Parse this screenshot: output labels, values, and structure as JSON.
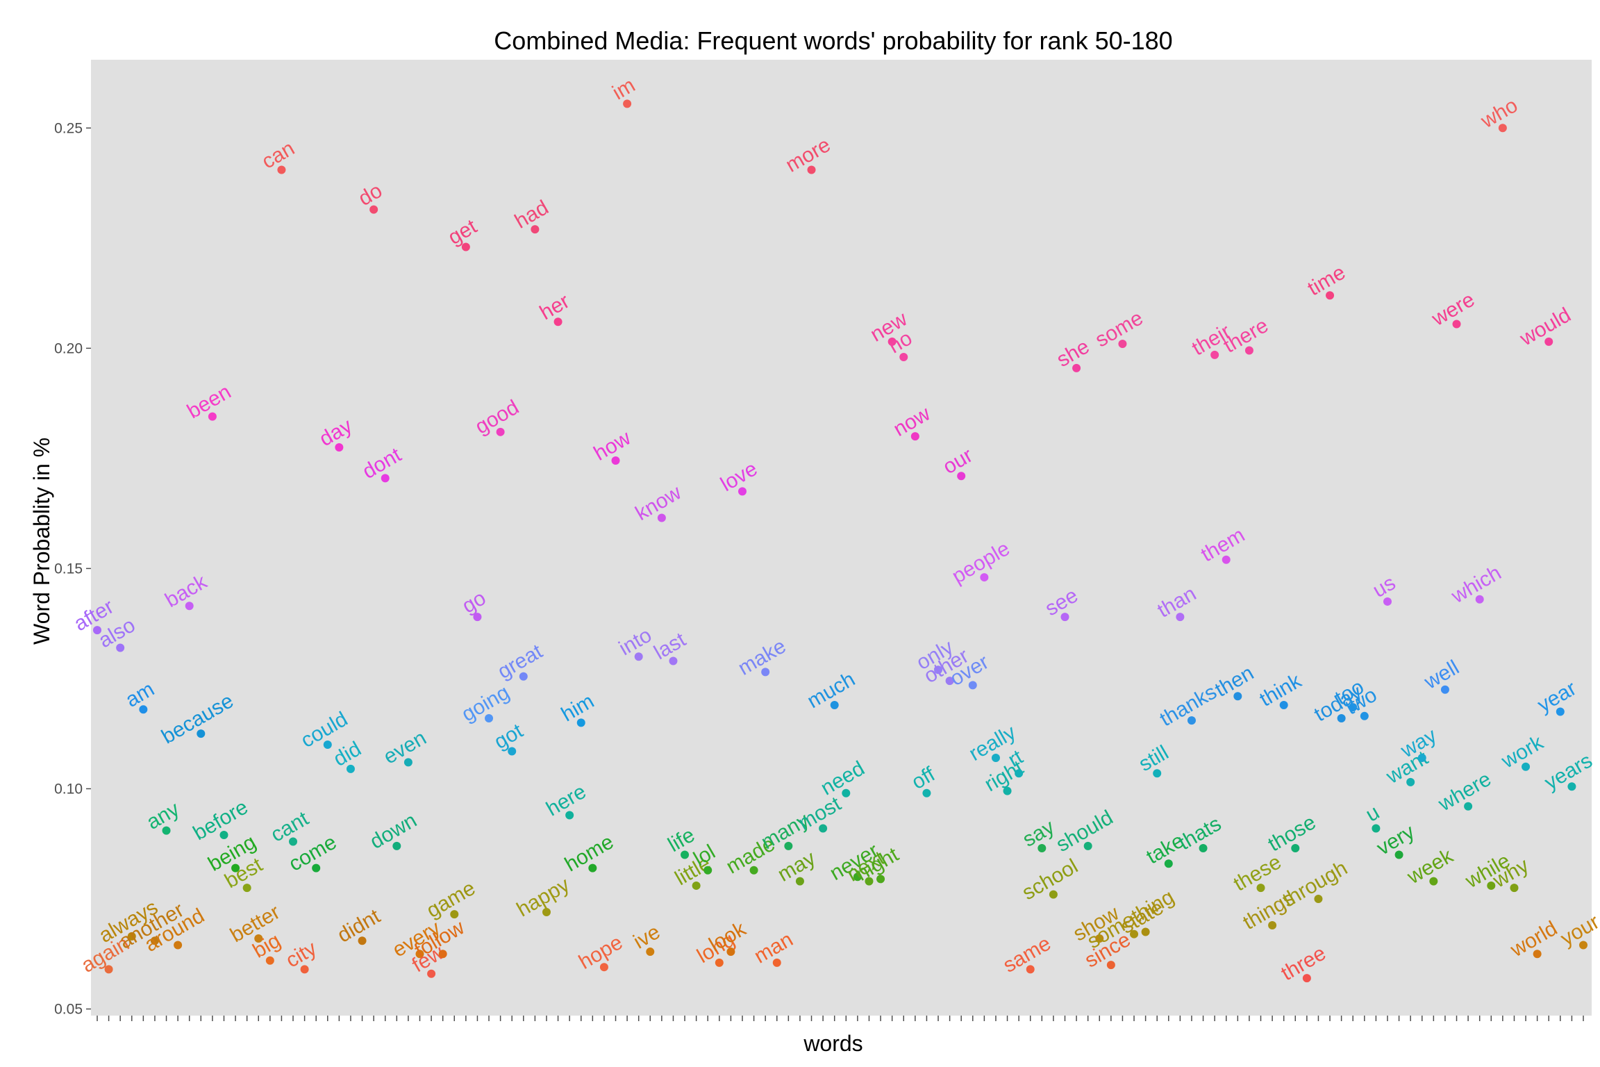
{
  "chart_data": {
    "type": "scatter",
    "title": "Combined Media: Frequent words' probability for rank 50-180",
    "xlabel": "words",
    "ylabel": "Word Probablity in %",
    "ylim": [
      0.0485,
      0.2655
    ],
    "y_ticks": [
      "0.05",
      "0.10",
      "0.15",
      "0.20",
      "0.25"
    ],
    "grid": false,
    "legend": "none",
    "panel_color": "#e0e0e0",
    "points": [
      {
        "word": "after",
        "y": 0.136,
        "color": "#a869f8"
      },
      {
        "word": "again",
        "y": 0.059,
        "color": "#e96c3d"
      },
      {
        "word": "also",
        "y": 0.132,
        "color": "#9e73f8"
      },
      {
        "word": "always",
        "y": 0.0665,
        "color": "#b8860b"
      },
      {
        "word": "am",
        "y": 0.118,
        "color": "#1f8fe8"
      },
      {
        "word": "another",
        "y": 0.0655,
        "color": "#c07a12"
      },
      {
        "word": "any",
        "y": 0.0905,
        "color": "#14b471"
      },
      {
        "word": "around",
        "y": 0.0645,
        "color": "#d07a10"
      },
      {
        "word": "back",
        "y": 0.1415,
        "color": "#c65ff4"
      },
      {
        "word": "because",
        "y": 0.1125,
        "color": "#1592d6"
      },
      {
        "word": "been",
        "y": 0.1845,
        "color": "#f53cc8"
      },
      {
        "word": "before",
        "y": 0.0895,
        "color": "#10b085"
      },
      {
        "word": "being",
        "y": 0.082,
        "color": "#22aa22"
      },
      {
        "word": "best",
        "y": 0.0775,
        "color": "#8aa416"
      },
      {
        "word": "better",
        "y": 0.066,
        "color": "#c98012"
      },
      {
        "word": "big",
        "y": 0.061,
        "color": "#ea6d22"
      },
      {
        "word": "can",
        "y": 0.2405,
        "color": "#f25a5a"
      },
      {
        "word": "cant",
        "y": 0.088,
        "color": "#16b08a"
      },
      {
        "word": "city",
        "y": 0.059,
        "color": "#f0613c"
      },
      {
        "word": "come",
        "y": 0.082,
        "color": "#18aa3a"
      },
      {
        "word": "could",
        "y": 0.11,
        "color": "#19a7d0"
      },
      {
        "word": "day",
        "y": 0.1775,
        "color": "#f136d0"
      },
      {
        "word": "did",
        "y": 0.1045,
        "color": "#16b0c4"
      },
      {
        "word": "didnt",
        "y": 0.0655,
        "color": "#c27710"
      },
      {
        "word": "do",
        "y": 0.2315,
        "color": "#f24b70"
      },
      {
        "word": "dont",
        "y": 0.1705,
        "color": "#e73ae2"
      },
      {
        "word": "down",
        "y": 0.087,
        "color": "#13ad7c"
      },
      {
        "word": "even",
        "y": 0.106,
        "color": "#16acb6"
      },
      {
        "word": "every",
        "y": 0.0625,
        "color": "#d8780e"
      },
      {
        "word": "few",
        "y": 0.058,
        "color": "#f15a48"
      },
      {
        "word": "follow",
        "y": 0.0625,
        "color": "#df6c16"
      },
      {
        "word": "game",
        "y": 0.0715,
        "color": "#9d9712"
      },
      {
        "word": "get",
        "y": 0.223,
        "color": "#f2427c"
      },
      {
        "word": "go",
        "y": 0.139,
        "color": "#c15cf2"
      },
      {
        "word": "going",
        "y": 0.116,
        "color": "#5296f5"
      },
      {
        "word": "good",
        "y": 0.181,
        "color": "#ef3ec0"
      },
      {
        "word": "got",
        "y": 0.1085,
        "color": "#1aa5d2"
      },
      {
        "word": "great",
        "y": 0.1255,
        "color": "#7388f7"
      },
      {
        "word": "had",
        "y": 0.227,
        "color": "#f04878"
      },
      {
        "word": "happy",
        "y": 0.072,
        "color": "#9f9a14"
      },
      {
        "word": "her",
        "y": 0.206,
        "color": "#f63e8d"
      },
      {
        "word": "here",
        "y": 0.094,
        "color": "#11b19c"
      },
      {
        "word": "him",
        "y": 0.115,
        "color": "#1599e0"
      },
      {
        "word": "home",
        "y": 0.082,
        "color": "#22a829"
      },
      {
        "word": "hope",
        "y": 0.0595,
        "color": "#f16440"
      },
      {
        "word": "how",
        "y": 0.1745,
        "color": "#eb39d8"
      },
      {
        "word": "im",
        "y": 0.2555,
        "color": "#f15f55"
      },
      {
        "word": "into",
        "y": 0.13,
        "color": "#9f79f4"
      },
      {
        "word": "ive",
        "y": 0.063,
        "color": "#cf7f0f"
      },
      {
        "word": "know",
        "y": 0.1615,
        "color": "#cf55ec"
      },
      {
        "word": "last",
        "y": 0.129,
        "color": "#a177f5"
      },
      {
        "word": "life",
        "y": 0.085,
        "color": "#16b15f"
      },
      {
        "word": "little",
        "y": 0.078,
        "color": "#80a214"
      },
      {
        "word": "lol",
        "y": 0.0815,
        "color": "#33ab26"
      },
      {
        "word": "long",
        "y": 0.0605,
        "color": "#ee6826"
      },
      {
        "word": "look",
        "y": 0.063,
        "color": "#d5730f"
      },
      {
        "word": "love",
        "y": 0.1675,
        "color": "#e33fe4"
      },
      {
        "word": "made",
        "y": 0.0815,
        "color": "#45aa20"
      },
      {
        "word": "make",
        "y": 0.1265,
        "color": "#7a86f6"
      },
      {
        "word": "man",
        "y": 0.0605,
        "color": "#f1642e"
      },
      {
        "word": "many",
        "y": 0.087,
        "color": "#1dae5e"
      },
      {
        "word": "may",
        "y": 0.079,
        "color": "#6ba218"
      },
      {
        "word": "more",
        "y": 0.2405,
        "color": "#f24d6d"
      },
      {
        "word": "most",
        "y": 0.091,
        "color": "#14af8e"
      },
      {
        "word": "much",
        "y": 0.119,
        "color": "#1e93e0"
      },
      {
        "word": "need",
        "y": 0.099,
        "color": "#10b2a2"
      },
      {
        "word": "never",
        "y": 0.08,
        "color": "#3ca922"
      },
      {
        "word": "next",
        "y": 0.079,
        "color": "#5ea61a"
      },
      {
        "word": "night",
        "y": 0.0795,
        "color": "#4ea81c"
      },
      {
        "word": "new",
        "y": 0.2015,
        "color": "#f4409c"
      },
      {
        "word": "no",
        "y": 0.198,
        "color": "#f344a2"
      },
      {
        "word": "now",
        "y": 0.18,
        "color": "#ef38c4"
      },
      {
        "word": "off",
        "y": 0.099,
        "color": "#12b2ae"
      },
      {
        "word": "only",
        "y": 0.127,
        "color": "#9580f6"
      },
      {
        "word": "other",
        "y": 0.1245,
        "color": "#9a7bf4"
      },
      {
        "word": "our",
        "y": 0.171,
        "color": "#e83ad4"
      },
      {
        "word": "over",
        "y": 0.1235,
        "color": "#6e8cf6"
      },
      {
        "word": "people",
        "y": 0.148,
        "color": "#d25cf4"
      },
      {
        "word": "really",
        "y": 0.107,
        "color": "#19adc6"
      },
      {
        "word": "right",
        "y": 0.0995,
        "color": "#13b1a6"
      },
      {
        "word": "rt",
        "y": 0.1035,
        "color": "#14b0b8"
      },
      {
        "word": "same",
        "y": 0.059,
        "color": "#f2603f"
      },
      {
        "word": "say",
        "y": 0.0865,
        "color": "#22ad52"
      },
      {
        "word": "school",
        "y": 0.076,
        "color": "#8e9d14"
      },
      {
        "word": "see",
        "y": 0.139,
        "color": "#b567f6"
      },
      {
        "word": "she",
        "y": 0.1955,
        "color": "#f23fa0"
      },
      {
        "word": "should",
        "y": 0.087,
        "color": "#16b07a"
      },
      {
        "word": "show",
        "y": 0.066,
        "color": "#b88a10"
      },
      {
        "word": "since",
        "y": 0.06,
        "color": "#ec6232"
      },
      {
        "word": "some",
        "y": 0.201,
        "color": "#f1469a"
      },
      {
        "word": "something",
        "y": 0.067,
        "color": "#a99312"
      },
      {
        "word": "state",
        "y": 0.0675,
        "color": "#aa8f10"
      },
      {
        "word": "still",
        "y": 0.1035,
        "color": "#12b0ba"
      },
      {
        "word": "take",
        "y": 0.083,
        "color": "#18ad46"
      },
      {
        "word": "than",
        "y": 0.139,
        "color": "#b16ef6"
      },
      {
        "word": "thanks",
        "y": 0.1155,
        "color": "#2d92e6"
      },
      {
        "word": "thats",
        "y": 0.0865,
        "color": "#14ae64"
      },
      {
        "word": "their",
        "y": 0.1985,
        "color": "#f445a0"
      },
      {
        "word": "them",
        "y": 0.152,
        "color": "#d853ec"
      },
      {
        "word": "then",
        "y": 0.121,
        "color": "#238fe0"
      },
      {
        "word": "there",
        "y": 0.1995,
        "color": "#f4449e"
      },
      {
        "word": "these",
        "y": 0.0775,
        "color": "#90a016"
      },
      {
        "word": "things",
        "y": 0.069,
        "color": "#a69214"
      },
      {
        "word": "think",
        "y": 0.119,
        "color": "#2090e4"
      },
      {
        "word": "those",
        "y": 0.0865,
        "color": "#13ae70"
      },
      {
        "word": "three",
        "y": 0.057,
        "color": "#f3524c"
      },
      {
        "word": "through",
        "y": 0.075,
        "color": "#9b9916"
      },
      {
        "word": "time",
        "y": 0.212,
        "color": "#f44282"
      },
      {
        "word": "today",
        "y": 0.116,
        "color": "#2090e0"
      },
      {
        "word": "too",
        "y": 0.1185,
        "color": "#1e92e2"
      },
      {
        "word": "two",
        "y": 0.1165,
        "color": "#2193e4"
      },
      {
        "word": "u",
        "y": 0.091,
        "color": "#12b088"
      },
      {
        "word": "us",
        "y": 0.1425,
        "color": "#c85ef4"
      },
      {
        "word": "very",
        "y": 0.085,
        "color": "#1ea83a"
      },
      {
        "word": "want",
        "y": 0.1015,
        "color": "#14b0b0"
      },
      {
        "word": "way",
        "y": 0.107,
        "color": "#1aa9ce"
      },
      {
        "word": "week",
        "y": 0.079,
        "color": "#62a416"
      },
      {
        "word": "well",
        "y": 0.1225,
        "color": "#3d8ef2"
      },
      {
        "word": "were",
        "y": 0.2055,
        "color": "#f43f90"
      },
      {
        "word": "where",
        "y": 0.096,
        "color": "#13b1a0"
      },
      {
        "word": "which",
        "y": 0.143,
        "color": "#c661f4"
      },
      {
        "word": "while",
        "y": 0.078,
        "color": "#6ea414"
      },
      {
        "word": "who",
        "y": 0.25,
        "color": "#f25e5c"
      },
      {
        "word": "why",
        "y": 0.0775,
        "color": "#80a014"
      },
      {
        "word": "work",
        "y": 0.105,
        "color": "#16aec0"
      },
      {
        "word": "world",
        "y": 0.0625,
        "color": "#d57812"
      },
      {
        "word": "would",
        "y": 0.2015,
        "color": "#f43f9a"
      },
      {
        "word": "year",
        "y": 0.1175,
        "color": "#2094e8"
      },
      {
        "word": "years",
        "y": 0.1005,
        "color": "#12b1ac"
      },
      {
        "word": "your",
        "y": 0.0645,
        "color": "#c88410"
      }
    ]
  }
}
